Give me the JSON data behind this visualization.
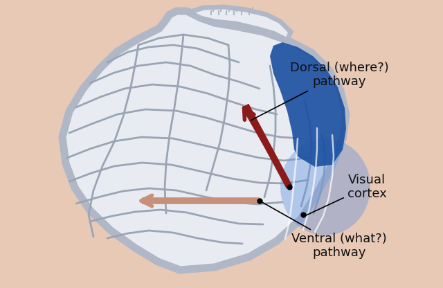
{
  "background_color": "#e8c9b5",
  "brain_outline_color": "#b0b8c8",
  "brain_fill_color": "#e8ecf2",
  "gyri_color": "#d8dde8",
  "gyri_outline_color": "#9aa4b4",
  "visual_cortex_blue": "#1a4fa0",
  "visual_cortex_glow": "#6090e0",
  "dorsal_arrow_color": "#8b1a1a",
  "ventral_arrow_color": "#c8907a",
  "label_color": "#111111",
  "dorsal_label": "Dorsal (where?)\npathway",
  "ventral_label": "Ventral (what?)\npathway",
  "visual_cortex_label": "Visual\ncortex",
  "figsize": [
    6.4,
    4.16
  ],
  "dpi": 100
}
